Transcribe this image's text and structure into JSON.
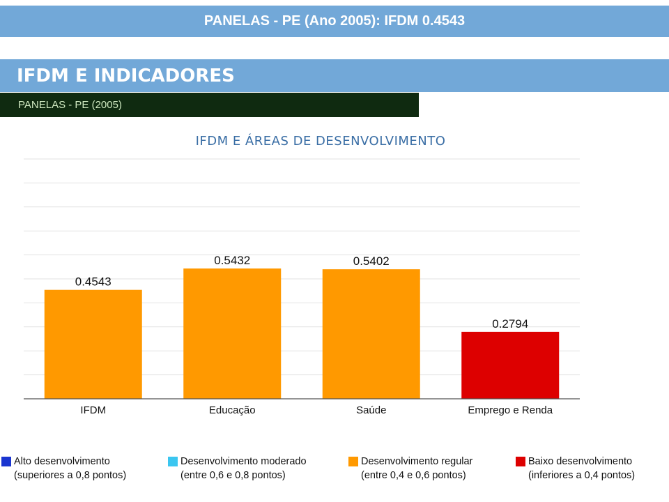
{
  "banner": {
    "title": "PANELAS - PE (Ano 2005): IFDM 0.4543"
  },
  "section": {
    "title": "IFDM E INDICADORES",
    "subtitle": "PANELAS - PE (2005)"
  },
  "chart_data": {
    "type": "bar",
    "title": "IFDM E ÁREAS DE DESENVOLVIMENTO",
    "categories": [
      "IFDM",
      "Educação",
      "Saúde",
      "Emprego e Renda"
    ],
    "values": [
      0.4543,
      0.5432,
      0.5402,
      0.2794
    ],
    "value_labels": [
      "0.4543",
      "0.5432",
      "0.5402",
      "0.2794"
    ],
    "bar_colors": [
      "#ff9900",
      "#ff9900",
      "#ff9900",
      "#dd0000"
    ],
    "ylim": [
      0,
      1
    ],
    "y_grid_step": 0.1,
    "grid": true,
    "xlabel": "",
    "ylabel": "",
    "legend_position": "bottom"
  },
  "legend": [
    {
      "color": "#1a35d0",
      "label": "Alto desenvolvimento",
      "sub": "(superiores a 0,8 pontos)"
    },
    {
      "color": "#3bc6f0",
      "label": "Desenvolvimento moderado",
      "sub": "(entre 0,6 e 0,8 pontos)"
    },
    {
      "color": "#ff9900",
      "label": "Desenvolvimento regular",
      "sub": "(entre 0,4 e 0,6 pontos)"
    },
    {
      "color": "#dd0000",
      "label": "Baixo desenvolvimento",
      "sub": "(inferiores a 0,4 pontos)"
    }
  ]
}
